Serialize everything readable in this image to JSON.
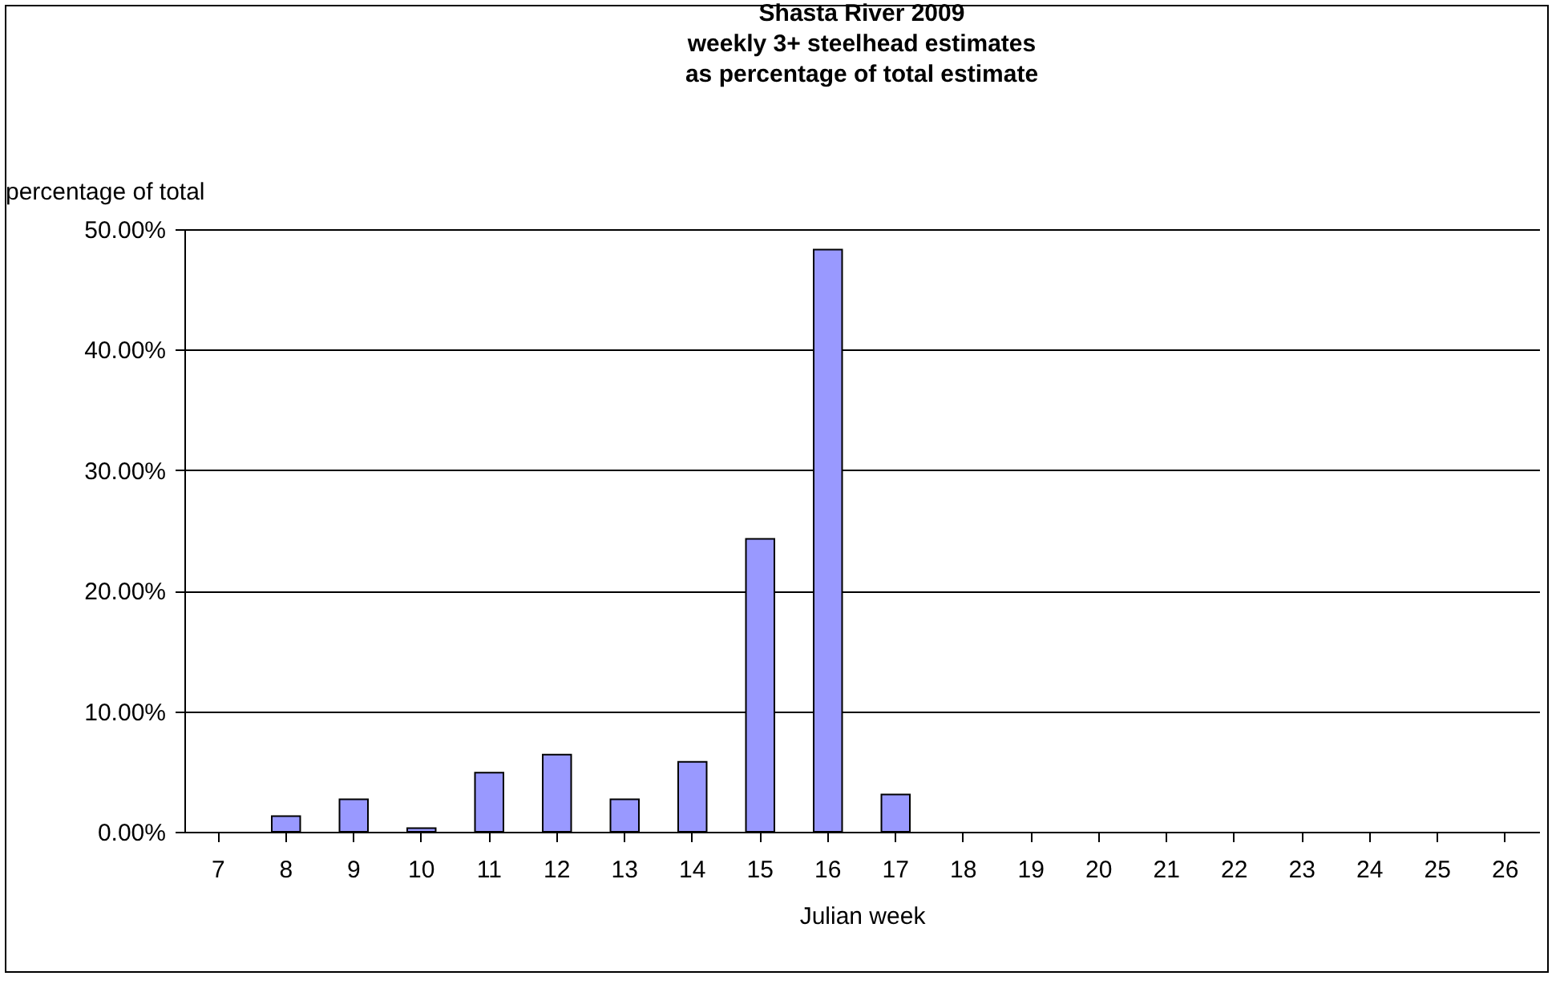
{
  "chart_data": {
    "type": "bar",
    "title": "Shasta River 2009\nweekly 3+ steelhead estimates\nas percentage of total estimate",
    "xlabel": "Julian week",
    "ylabel": "percentage of total",
    "categories": [
      "7",
      "8",
      "9",
      "10",
      "11",
      "12",
      "13",
      "14",
      "15",
      "16",
      "17",
      "18",
      "19",
      "20",
      "21",
      "22",
      "23",
      "24",
      "25",
      "26"
    ],
    "values": [
      null,
      1.3,
      2.7,
      0.3,
      4.9,
      6.4,
      2.7,
      5.8,
      24.3,
      48.3,
      3.1,
      null,
      null,
      null,
      null,
      null,
      null,
      null,
      null,
      null
    ],
    "color": "#9999ff",
    "ylim": [
      0,
      50
    ],
    "yticks": [
      {
        "value": 0,
        "label": "0.00%"
      },
      {
        "value": 10,
        "label": "10.00%"
      },
      {
        "value": 20,
        "label": "20.00%"
      },
      {
        "value": 30,
        "label": "30.00%"
      },
      {
        "value": 40,
        "label": "40.00%"
      },
      {
        "value": 50,
        "label": "50.00%"
      }
    ],
    "grid": "y"
  }
}
